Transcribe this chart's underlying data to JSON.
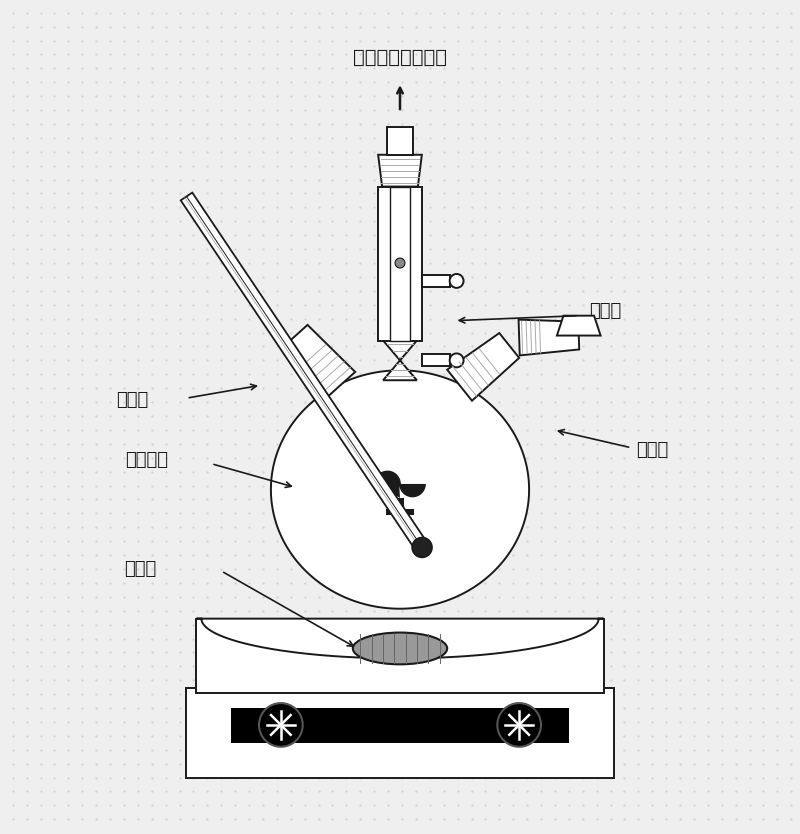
{
  "bg_color": "#efefef",
  "line_color": "#1a1a1a",
  "labels": {
    "top": "至真空或吹扫排气",
    "condenser": "冷凝器",
    "thermometer": "温度计",
    "flask": "反应烧瓶",
    "injection": "注入口",
    "stirbar": "搅拌子"
  }
}
